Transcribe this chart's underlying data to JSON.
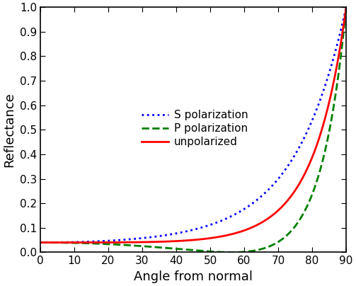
{
  "title": "",
  "xlabel": "Angle from normal",
  "ylabel": "Reflectance",
  "xlim": [
    0,
    90
  ],
  "ylim": [
    0,
    1
  ],
  "xticks": [
    0,
    10,
    20,
    30,
    40,
    50,
    60,
    70,
    80,
    90
  ],
  "yticks": [
    0.0,
    0.1,
    0.2,
    0.3,
    0.4,
    0.5,
    0.6,
    0.7,
    0.8,
    0.9,
    1.0
  ],
  "n1": 1.0,
  "n2": 1.5,
  "s_color": "#0000ff",
  "p_color": "#008000",
  "u_color": "#ff0000",
  "s_label": "S polarization",
  "p_label": "P polarization",
  "u_label": "unpolarized",
  "s_linestyle": "dotted",
  "p_linestyle": "dashed",
  "u_linestyle": "solid",
  "linewidth": 2.0,
  "background_color": "#ffffff",
  "xlabel_fontsize": 13,
  "ylabel_fontsize": 13,
  "tick_fontsize": 11,
  "legend_fontsize": 11
}
